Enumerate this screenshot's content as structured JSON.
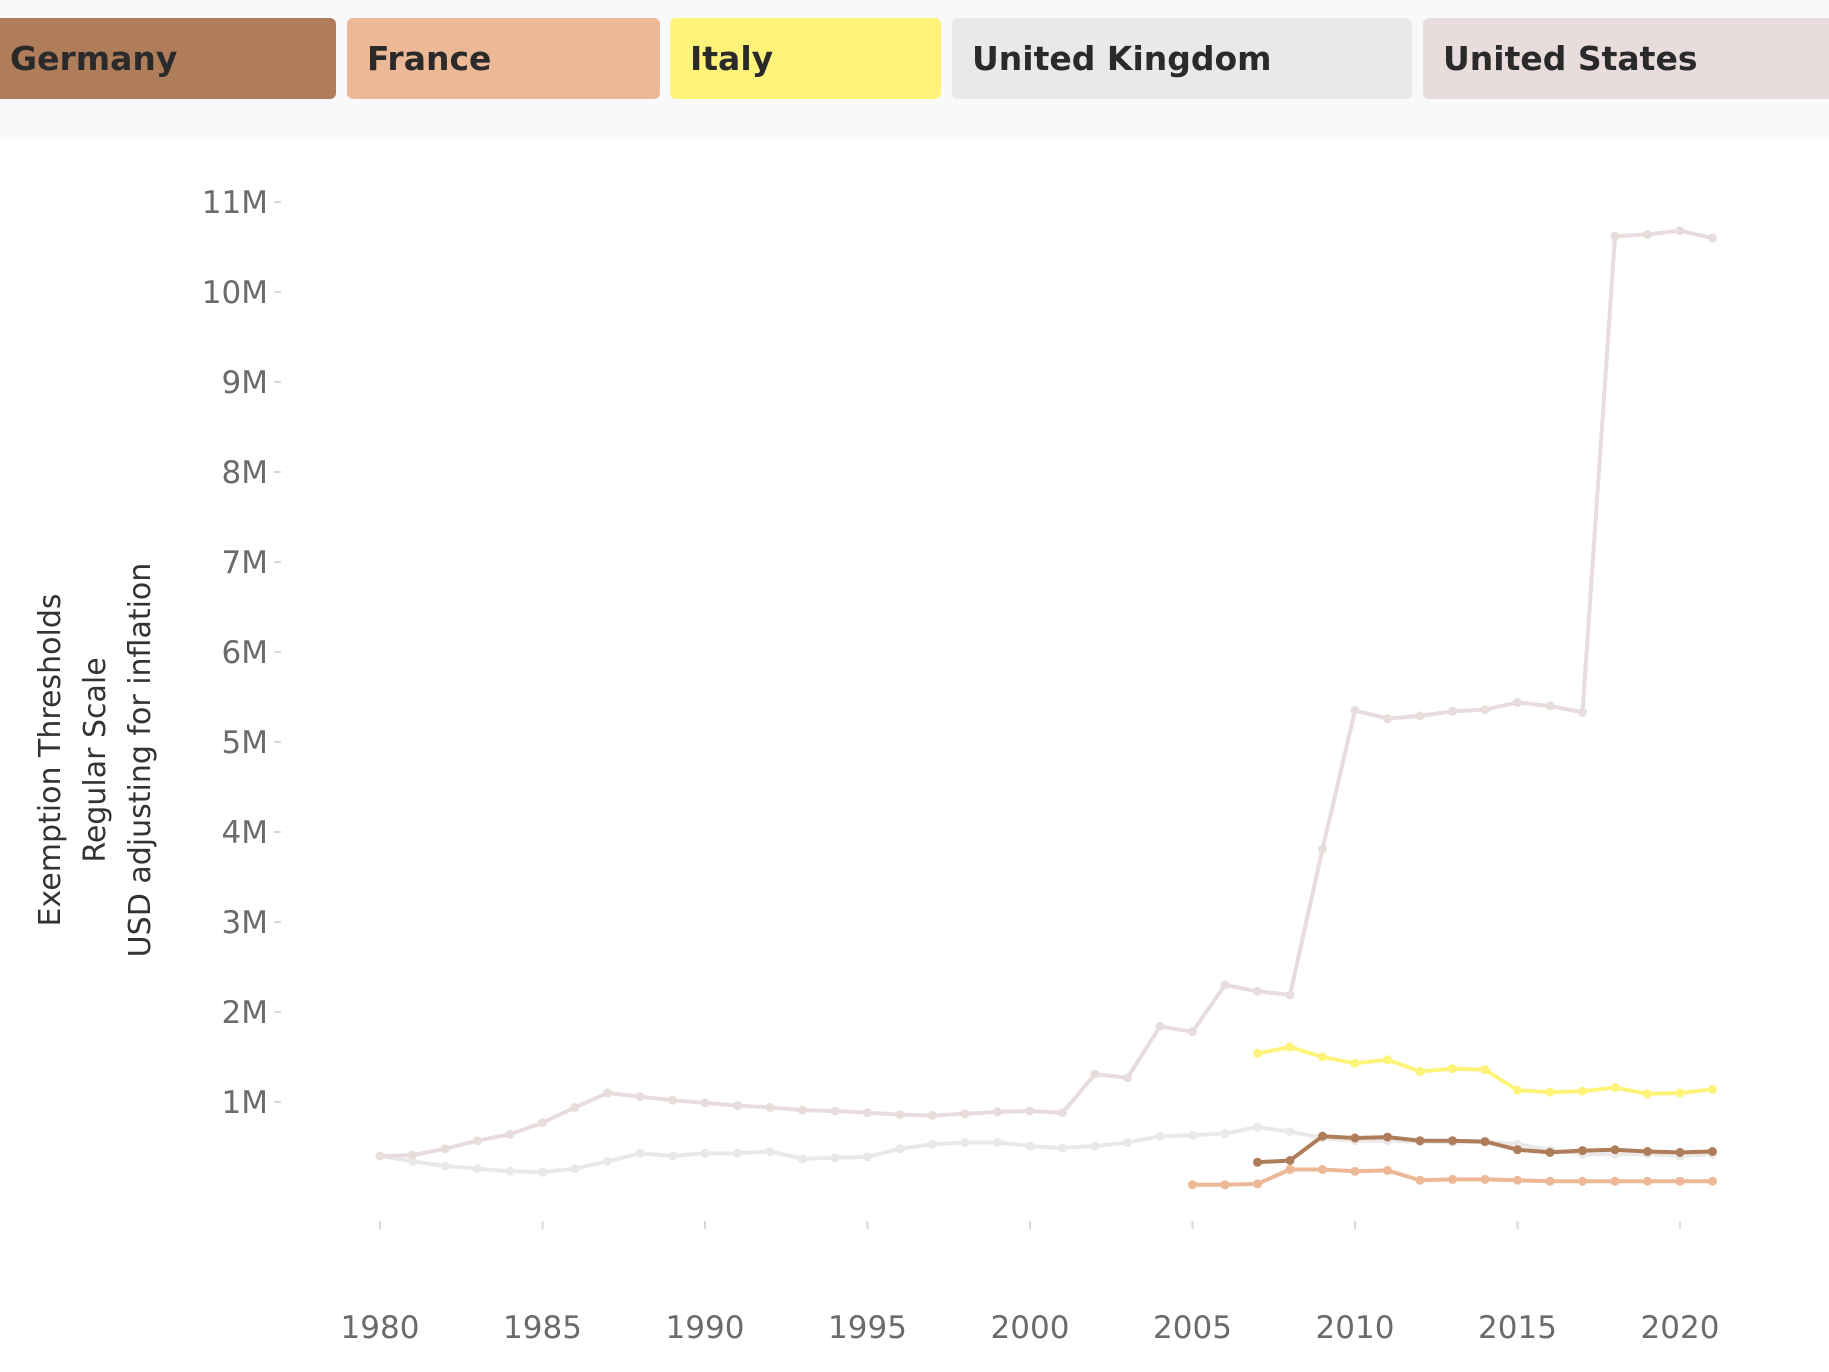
{
  "legend": [
    {
      "label": "Germany",
      "color": "#b07d5b"
    },
    {
      "label": "France",
      "color": "#ecb896"
    },
    {
      "label": "Italy",
      "color": "#fff479"
    },
    {
      "label": "United Kingdom",
      "color": "#ebe8e8"
    },
    {
      "label": "United States",
      "color": "#e8dcdc"
    }
  ],
  "chart_data": {
    "type": "line",
    "ylabel": [
      "Exemption Thresholds",
      "Regular Scale",
      "USD adjusting for inflation"
    ],
    "ylim": [
      0,
      11000000
    ],
    "xlim": [
      1980,
      2021
    ],
    "y_ticks": [
      {
        "value": 1000000,
        "label": "1M"
      },
      {
        "value": 2000000,
        "label": "2M"
      },
      {
        "value": 3000000,
        "label": "3M"
      },
      {
        "value": 4000000,
        "label": "4M"
      },
      {
        "value": 5000000,
        "label": "5M"
      },
      {
        "value": 6000000,
        "label": "6M"
      },
      {
        "value": 7000000,
        "label": "7M"
      },
      {
        "value": 8000000,
        "label": "8M"
      },
      {
        "value": 9000000,
        "label": "9M"
      },
      {
        "value": 10000000,
        "label": "10M"
      },
      {
        "value": 11000000,
        "label": "11M"
      }
    ],
    "x_ticks": [
      {
        "value": 1980,
        "label": "1980"
      },
      {
        "value": 1985,
        "label": "1985"
      },
      {
        "value": 1990,
        "label": "1990"
      },
      {
        "value": 1995,
        "label": "1995"
      },
      {
        "value": 2000,
        "label": "2000"
      },
      {
        "value": 2005,
        "label": "2005"
      },
      {
        "value": 2010,
        "label": "2010"
      },
      {
        "value": 2015,
        "label": "2015"
      },
      {
        "value": 2020,
        "label": "2020"
      }
    ],
    "grid": false,
    "series": [
      {
        "name": "United Kingdom",
        "color": "#ebe8e8",
        "x": [
          1980,
          1981,
          1982,
          1983,
          1984,
          1985,
          1986,
          1987,
          1988,
          1989,
          1990,
          1991,
          1992,
          1993,
          1994,
          1995,
          1996,
          1997,
          1998,
          1999,
          2000,
          2001,
          2002,
          2003,
          2004,
          2005,
          2006,
          2007,
          2008,
          2009,
          2010,
          2011,
          2012,
          2013,
          2014,
          2015,
          2016,
          2017,
          2018,
          2019,
          2020,
          2021
        ],
        "y": [
          400000,
          340000,
          290000,
          260000,
          230000,
          220000,
          260000,
          340000,
          430000,
          400000,
          430000,
          430000,
          450000,
          370000,
          380000,
          390000,
          480000,
          530000,
          550000,
          550000,
          510000,
          490000,
          510000,
          550000,
          620000,
          630000,
          650000,
          720000,
          670000,
          600000,
          570000,
          570000,
          560000,
          550000,
          560000,
          530000,
          470000,
          420000,
          420000,
          420000,
          400000,
          420000
        ]
      },
      {
        "name": "United States",
        "color": "#e8dcdc",
        "x": [
          1980,
          1981,
          1982,
          1983,
          1984,
          1985,
          1986,
          1987,
          1988,
          1989,
          1990,
          1991,
          1992,
          1993,
          1994,
          1995,
          1996,
          1997,
          1998,
          1999,
          2000,
          2001,
          2002,
          2003,
          2004,
          2005,
          2006,
          2007,
          2008,
          2009,
          2010,
          2011,
          2012,
          2013,
          2014,
          2015,
          2016,
          2017,
          2018,
          2019,
          2020,
          2021
        ],
        "y": [
          400000,
          410000,
          480000,
          570000,
          640000,
          770000,
          940000,
          1100000,
          1060000,
          1020000,
          990000,
          960000,
          940000,
          910000,
          900000,
          880000,
          860000,
          850000,
          870000,
          890000,
          900000,
          880000,
          1310000,
          1270000,
          1840000,
          1780000,
          2300000,
          2230000,
          2190000,
          3810000,
          5350000,
          5260000,
          5290000,
          5340000,
          5360000,
          5440000,
          5400000,
          5330000,
          10620000,
          10640000,
          10680000,
          10600000
        ]
      },
      {
        "name": "Italy",
        "color": "#fff479",
        "x": [
          2007,
          2008,
          2009,
          2010,
          2011,
          2012,
          2013,
          2014,
          2015,
          2016,
          2017,
          2018,
          2019,
          2020,
          2021
        ],
        "y": [
          1540000,
          1610000,
          1500000,
          1430000,
          1470000,
          1340000,
          1370000,
          1360000,
          1130000,
          1110000,
          1120000,
          1160000,
          1090000,
          1100000,
          1140000
        ]
      },
      {
        "name": "Germany",
        "color": "#b07d5b",
        "x": [
          2007,
          2008,
          2009,
          2010,
          2011,
          2012,
          2013,
          2014,
          2015,
          2016,
          2017,
          2018,
          2019,
          2020,
          2021
        ],
        "y": [
          330000,
          350000,
          620000,
          600000,
          610000,
          570000,
          570000,
          560000,
          470000,
          440000,
          460000,
          470000,
          450000,
          440000,
          450000
        ]
      },
      {
        "name": "France",
        "color": "#ecb896",
        "x": [
          2005,
          2006,
          2007,
          2008,
          2009,
          2010,
          2011,
          2012,
          2013,
          2014,
          2015,
          2016,
          2017,
          2018,
          2019,
          2020,
          2021
        ],
        "y": [
          80000,
          80000,
          90000,
          250000,
          250000,
          230000,
          240000,
          130000,
          140000,
          140000,
          130000,
          120000,
          120000,
          120000,
          120000,
          120000,
          120000
        ]
      }
    ]
  }
}
